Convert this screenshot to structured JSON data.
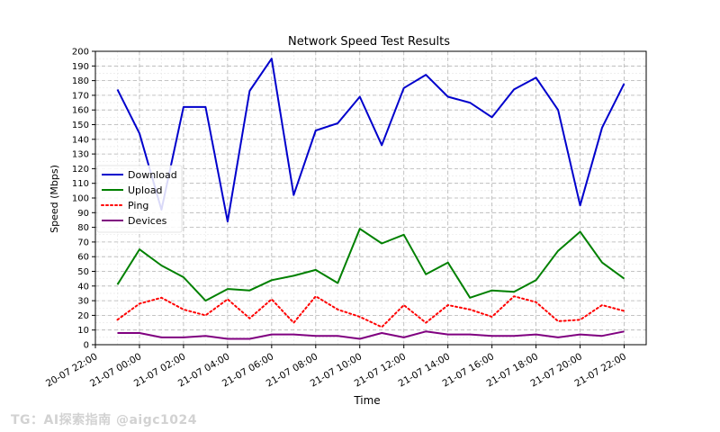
{
  "watermark": "TG：AI探索指南 @aigc1024",
  "chart_data": {
    "type": "line",
    "title": "Network Speed Test Results",
    "xlabel": "Time",
    "ylabel": "Speed (Mbps)",
    "ylim": [
      0,
      200
    ],
    "y_ticks": [
      0,
      10,
      20,
      30,
      40,
      50,
      60,
      70,
      80,
      90,
      100,
      110,
      120,
      130,
      140,
      150,
      160,
      170,
      180,
      190,
      200
    ],
    "x_ticks": [
      "20-07 22:00",
      "21-07 00:00",
      "21-07 02:00",
      "21-07 04:00",
      "21-07 06:00",
      "21-07 08:00",
      "21-07 10:00",
      "21-07 12:00",
      "21-07 14:00",
      "21-07 16:00",
      "21-07 18:00",
      "21-07 20:00",
      "21-07 22:00"
    ],
    "x_tick_hours": [
      22,
      24,
      26,
      28,
      30,
      32,
      34,
      36,
      38,
      40,
      42,
      44,
      46
    ],
    "x_hours": [
      23,
      24,
      25,
      26,
      27,
      28,
      29,
      30,
      31,
      32,
      33,
      34,
      35,
      36,
      37,
      38,
      39,
      40,
      41,
      42,
      43,
      44,
      45,
      46
    ],
    "xlim_hours": [
      22,
      47
    ],
    "grid": true,
    "legend_position": "center-left",
    "series": [
      {
        "name": "Download",
        "color": "#0000cc",
        "dash": "solid",
        "values": [
          174,
          144,
          92,
          162,
          162,
          84,
          173,
          195,
          102,
          146,
          151,
          169,
          136,
          175,
          184,
          169,
          165,
          155,
          174,
          182,
          160,
          95,
          148,
          178
        ]
      },
      {
        "name": "Upload",
        "color": "#008000",
        "dash": "solid",
        "values": [
          41,
          65,
          54,
          46,
          30,
          38,
          37,
          44,
          47,
          51,
          42,
          79,
          69,
          75,
          48,
          56,
          32,
          37,
          36,
          44,
          64,
          77,
          56,
          45
        ]
      },
      {
        "name": "Ping",
        "color": "#ff0000",
        "dash": "dotted",
        "values": [
          17,
          28,
          32,
          24,
          20,
          31,
          18,
          31,
          15,
          33,
          24,
          19,
          12,
          27,
          15,
          27,
          24,
          19,
          33,
          29,
          16,
          17,
          27,
          23
        ]
      },
      {
        "name": "Devices",
        "color": "#800080",
        "dash": "solid",
        "values": [
          8,
          8,
          5,
          5,
          6,
          4,
          4,
          7,
          7,
          6,
          6,
          4,
          8,
          5,
          9,
          7,
          7,
          6,
          6,
          7,
          5,
          7,
          6,
          9
        ]
      }
    ]
  }
}
